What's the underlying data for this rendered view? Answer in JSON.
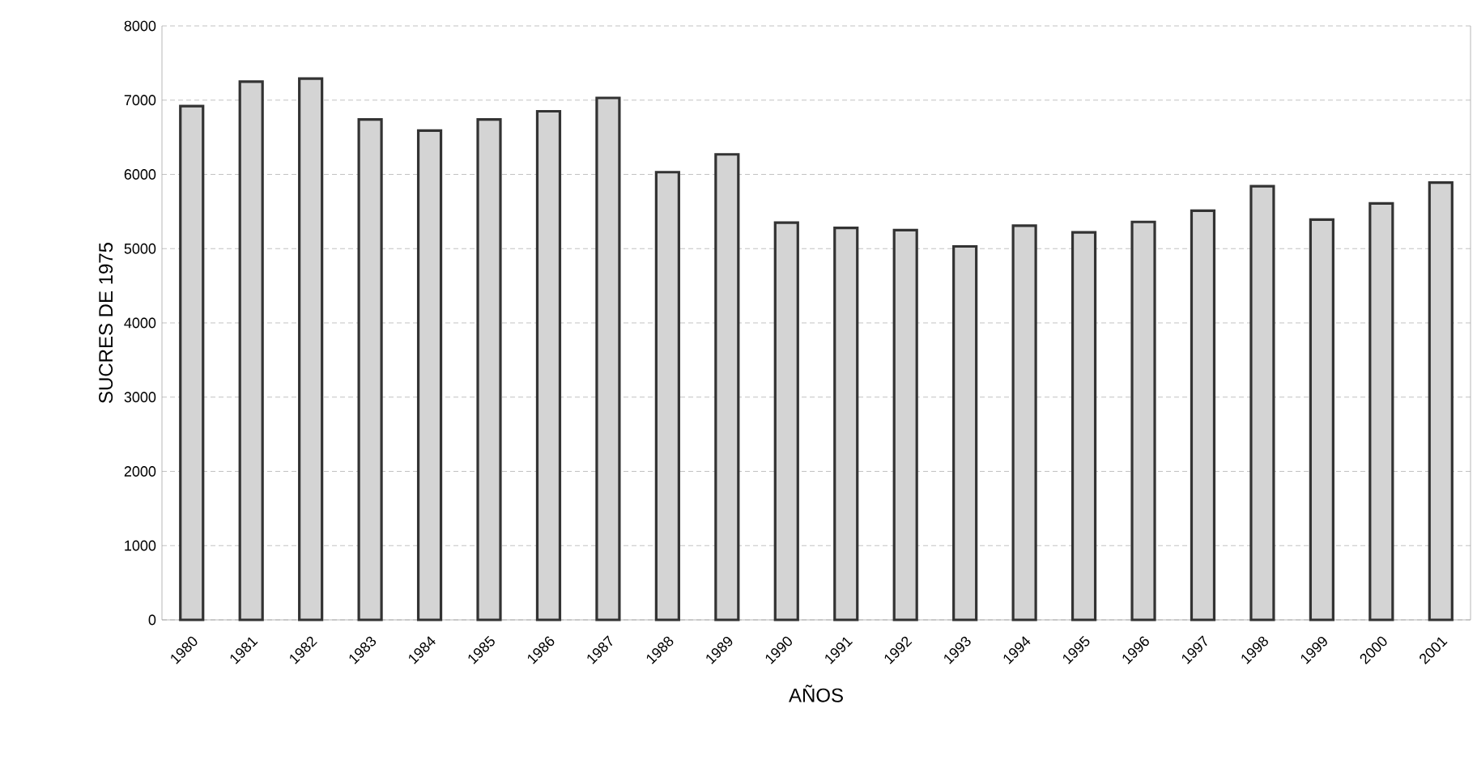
{
  "chart_data": {
    "type": "bar",
    "xlabel": "AÑOS",
    "ylabel": "SUCRES DE 1975",
    "categories": [
      "1980",
      "1981",
      "1982",
      "1983",
      "1984",
      "1985",
      "1986",
      "1987",
      "1988",
      "1989",
      "1990",
      "1991",
      "1992",
      "1993",
      "1994",
      "1995",
      "1996",
      "1997",
      "1998",
      "1999",
      "2000",
      "2001"
    ],
    "values": [
      6920,
      7250,
      7290,
      6740,
      6590,
      6740,
      6850,
      7030,
      6030,
      6270,
      5350,
      5280,
      5250,
      5030,
      5310,
      5220,
      5360,
      5510,
      5840,
      5390,
      5610,
      5890
    ],
    "color": "#d4d4d4",
    "ylim": [
      0,
      8000
    ],
    "yticks": [
      0,
      1000,
      2000,
      3000,
      4000,
      5000,
      6000,
      7000,
      8000
    ],
    "grid": "y"
  }
}
